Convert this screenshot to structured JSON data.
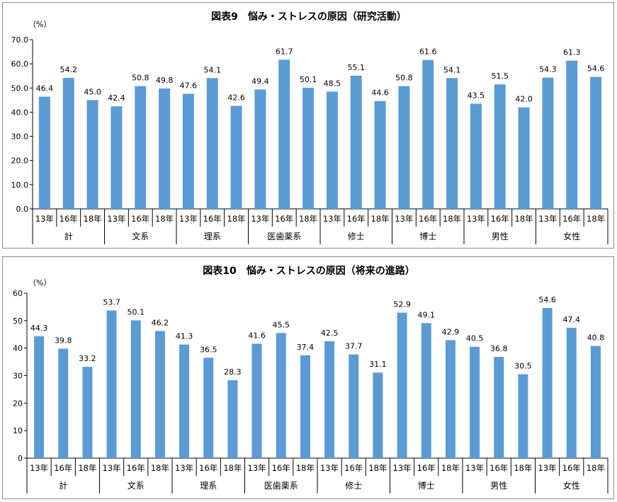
{
  "chart_data": [
    {
      "type": "bar",
      "title": "図表9　悩み・ストレスの原因（研究活動）",
      "unit": "（%）",
      "ylim": [
        0,
        70
      ],
      "yticks": [
        "0.0",
        "10.0",
        "20.0",
        "30.0",
        "40.0",
        "50.0",
        "60.0",
        "70.0"
      ],
      "grid": false,
      "categories": [
        "13年",
        "16年",
        "18年",
        "13年",
        "16年",
        "18年",
        "13年",
        "16年",
        "18年",
        "13年",
        "16年",
        "18年",
        "13年",
        "16年",
        "18年",
        "13年",
        "16年",
        "18年",
        "13年",
        "16年",
        "18年",
        "13年",
        "16年",
        "18年"
      ],
      "groups": [
        "計",
        "文系",
        "理系",
        "医歯薬系",
        "修士",
        "博士",
        "男性",
        "女性"
      ],
      "values": [
        46.4,
        54.2,
        45.0,
        42.4,
        50.8,
        49.8,
        47.6,
        54.1,
        42.6,
        49.4,
        61.7,
        50.1,
        48.5,
        55.1,
        44.6,
        50.8,
        61.6,
        54.1,
        43.5,
        51.5,
        42.0,
        54.3,
        61.3,
        54.6
      ],
      "labels": [
        "46.4",
        "54.2",
        "45.0",
        "42.4",
        "50.8",
        "49.8",
        "47.6",
        "54.1",
        "42.6",
        "49.4",
        "61.7",
        "50.1",
        "48.5",
        "55.1",
        "44.6",
        "50.8",
        "61.6",
        "54.1",
        "43.5",
        "51.5",
        "42.0",
        "54.3",
        "61.3",
        "54.6"
      ],
      "bar_color": "#5b9bd5"
    },
    {
      "type": "bar",
      "title": "図表10　悩み・ストレスの原因（将来の進路）",
      "unit": "（%）",
      "ylim": [
        0,
        60
      ],
      "yticks": [
        "0",
        "10",
        "20",
        "30",
        "40",
        "50",
        "60"
      ],
      "grid": false,
      "categories": [
        "13年",
        "16年",
        "18年",
        "13年",
        "16年",
        "18年",
        "13年",
        "16年",
        "18年",
        "13年",
        "16年",
        "18年",
        "13年",
        "16年",
        "18年",
        "13年",
        "16年",
        "18年",
        "13年",
        "16年",
        "18年",
        "13年",
        "16年",
        "18年"
      ],
      "groups": [
        "計",
        "文系",
        "理系",
        "医歯薬系",
        "修士",
        "博士",
        "男性",
        "女性"
      ],
      "values": [
        44.3,
        39.8,
        33.2,
        53.7,
        50.1,
        46.2,
        41.3,
        36.5,
        28.3,
        41.6,
        45.5,
        37.4,
        42.5,
        37.7,
        31.1,
        52.9,
        49.1,
        42.9,
        40.5,
        36.8,
        30.5,
        54.6,
        47.4,
        40.8
      ],
      "labels": [
        "44.3",
        "39.8",
        "33.2",
        "53.7",
        "50.1",
        "46.2",
        "41.3",
        "36.5",
        "28.3",
        "41.6",
        "45.5",
        "37.4",
        "42.5",
        "37.7",
        "31.1",
        "52.9",
        "49.1",
        "42.9",
        "40.5",
        "36.8",
        "30.5",
        "54.6",
        "47.4",
        "40.8"
      ],
      "bar_color": "#5b9bd5"
    }
  ]
}
